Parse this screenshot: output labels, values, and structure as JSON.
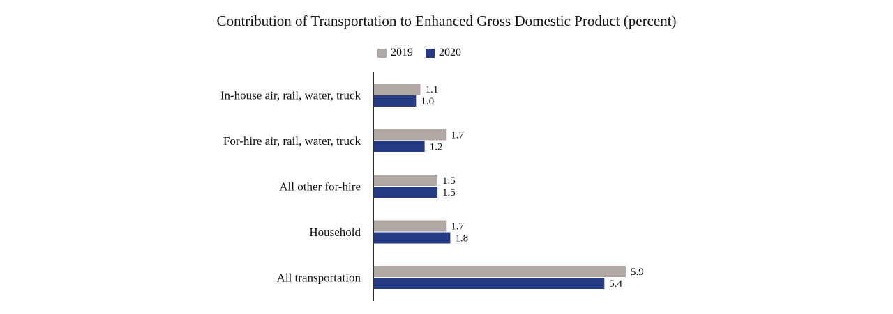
{
  "chart_data": {
    "type": "bar",
    "orientation": "horizontal",
    "title": "Contribution of Transportation to Enhanced Gross Domestic Product (percent)",
    "categories": [
      "In-house air, rail, water, truck",
      "For-hire air, rail, water, truck",
      "All other for-hire",
      "Household",
      "All transportation"
    ],
    "series": [
      {
        "name": "2019",
        "color": "#b1a8a3",
        "values": [
          1.1,
          1.7,
          1.5,
          1.7,
          5.9
        ],
        "labels": [
          "1.1",
          "1.7",
          "1.5",
          "1.7",
          "5.9"
        ]
      },
      {
        "name": "2020",
        "color": "#253a85",
        "values": [
          1.0,
          1.2,
          1.5,
          1.8,
          5.4
        ],
        "labels": [
          "1.0",
          "1.2",
          "1.5",
          "1.8",
          "5.4"
        ]
      }
    ],
    "xlim": [
      0,
      6.5
    ],
    "grid": false,
    "legend_position": "top"
  }
}
